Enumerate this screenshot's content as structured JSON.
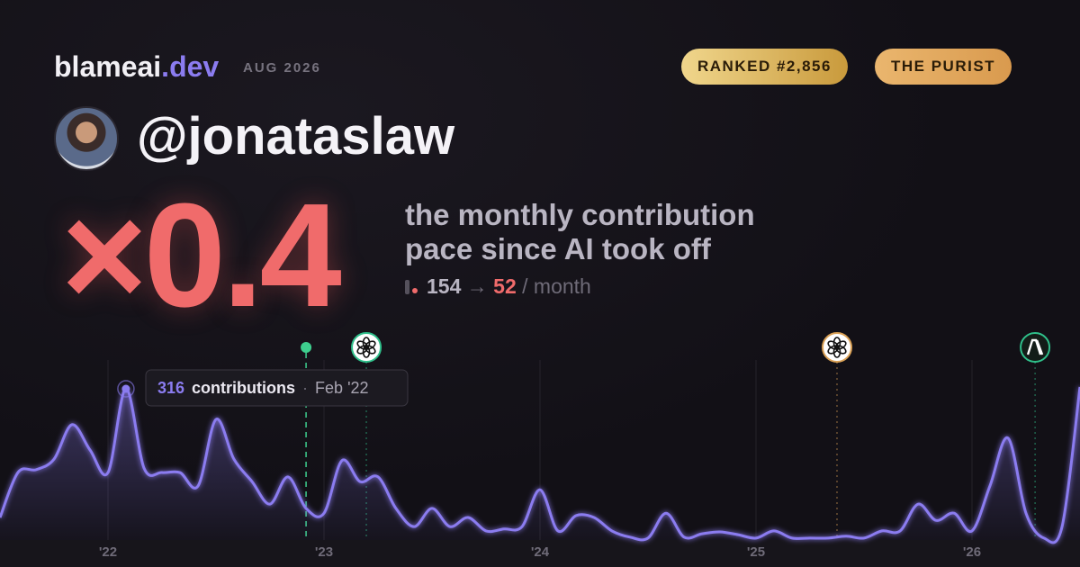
{
  "header": {
    "brand": "blameai",
    "brand_suffix": ".dev",
    "date": "AUG 2026",
    "badges": [
      "RANKED #2,856",
      "THE PURIST"
    ]
  },
  "profile": {
    "handle": "@jonataslaw"
  },
  "stats": {
    "multiplier": "×0.4",
    "description": [
      "the monthly contribution",
      "pace since AI took off"
    ],
    "before": "154",
    "arrow": "→",
    "after": "52",
    "unit": "/ month"
  },
  "chart_data": {
    "type": "area",
    "color": "#8b7cf0",
    "x": [
      2021.5,
      2021.583,
      2021.667,
      2021.75,
      2021.833,
      2021.917,
      2022,
      2022.083,
      2022.167,
      2022.25,
      2022.333,
      2022.417,
      2022.5,
      2022.583,
      2022.667,
      2022.75,
      2022.833,
      2022.917,
      2023,
      2023.083,
      2023.167,
      2023.25,
      2023.333,
      2023.417,
      2023.5,
      2023.583,
      2023.667,
      2023.75,
      2023.833,
      2023.917,
      2024,
      2024.083,
      2024.167,
      2024.25,
      2024.333,
      2024.417,
      2024.5,
      2024.583,
      2024.667,
      2024.75,
      2024.833,
      2024.917,
      2025,
      2025.083,
      2025.167,
      2025.25,
      2025.333,
      2025.417,
      2025.5,
      2025.583,
      2025.667,
      2025.75,
      2025.833,
      2025.917,
      2026,
      2026.083,
      2026.167,
      2026.25,
      2026.333,
      2026.417,
      2026.5
    ],
    "values": [
      47,
      141,
      147,
      169,
      241,
      188,
      141,
      316,
      150,
      141,
      141,
      113,
      252,
      169,
      122,
      75,
      132,
      66,
      56,
      166,
      122,
      132,
      66,
      28,
      66,
      28,
      47,
      19,
      23,
      28,
      105,
      19,
      51,
      47,
      19,
      6,
      4,
      56,
      6,
      13,
      17,
      11,
      4,
      19,
      4,
      4,
      4,
      8,
      4,
      19,
      19,
      75,
      41,
      56,
      19,
      113,
      213,
      56,
      4,
      28,
      320
    ],
    "xlim": [
      2021.5,
      2026.5
    ],
    "ylim": [
      0,
      380
    ],
    "xticks": [
      {
        "value": 2022,
        "label": "'22"
      },
      {
        "value": 2023,
        "label": "'23"
      },
      {
        "value": 2024,
        "label": "'24"
      },
      {
        "value": 2025,
        "label": "'25"
      },
      {
        "value": 2026,
        "label": "'26"
      }
    ],
    "grid": true,
    "tooltip": {
      "index": 7,
      "value": "316",
      "label": "contributions",
      "sep": "·",
      "date": "Feb '22"
    },
    "markers": [
      {
        "x": 2022.917,
        "icon": "dot",
        "color": "#3ecf8e"
      },
      {
        "x": 2023.196,
        "icon": "openai",
        "color": "#2fbf8a"
      },
      {
        "x": 2025.375,
        "icon": "openai",
        "color": "#d9a055"
      },
      {
        "x": 2026.292,
        "icon": "anthropic",
        "color": "#2fbf8a"
      }
    ]
  }
}
